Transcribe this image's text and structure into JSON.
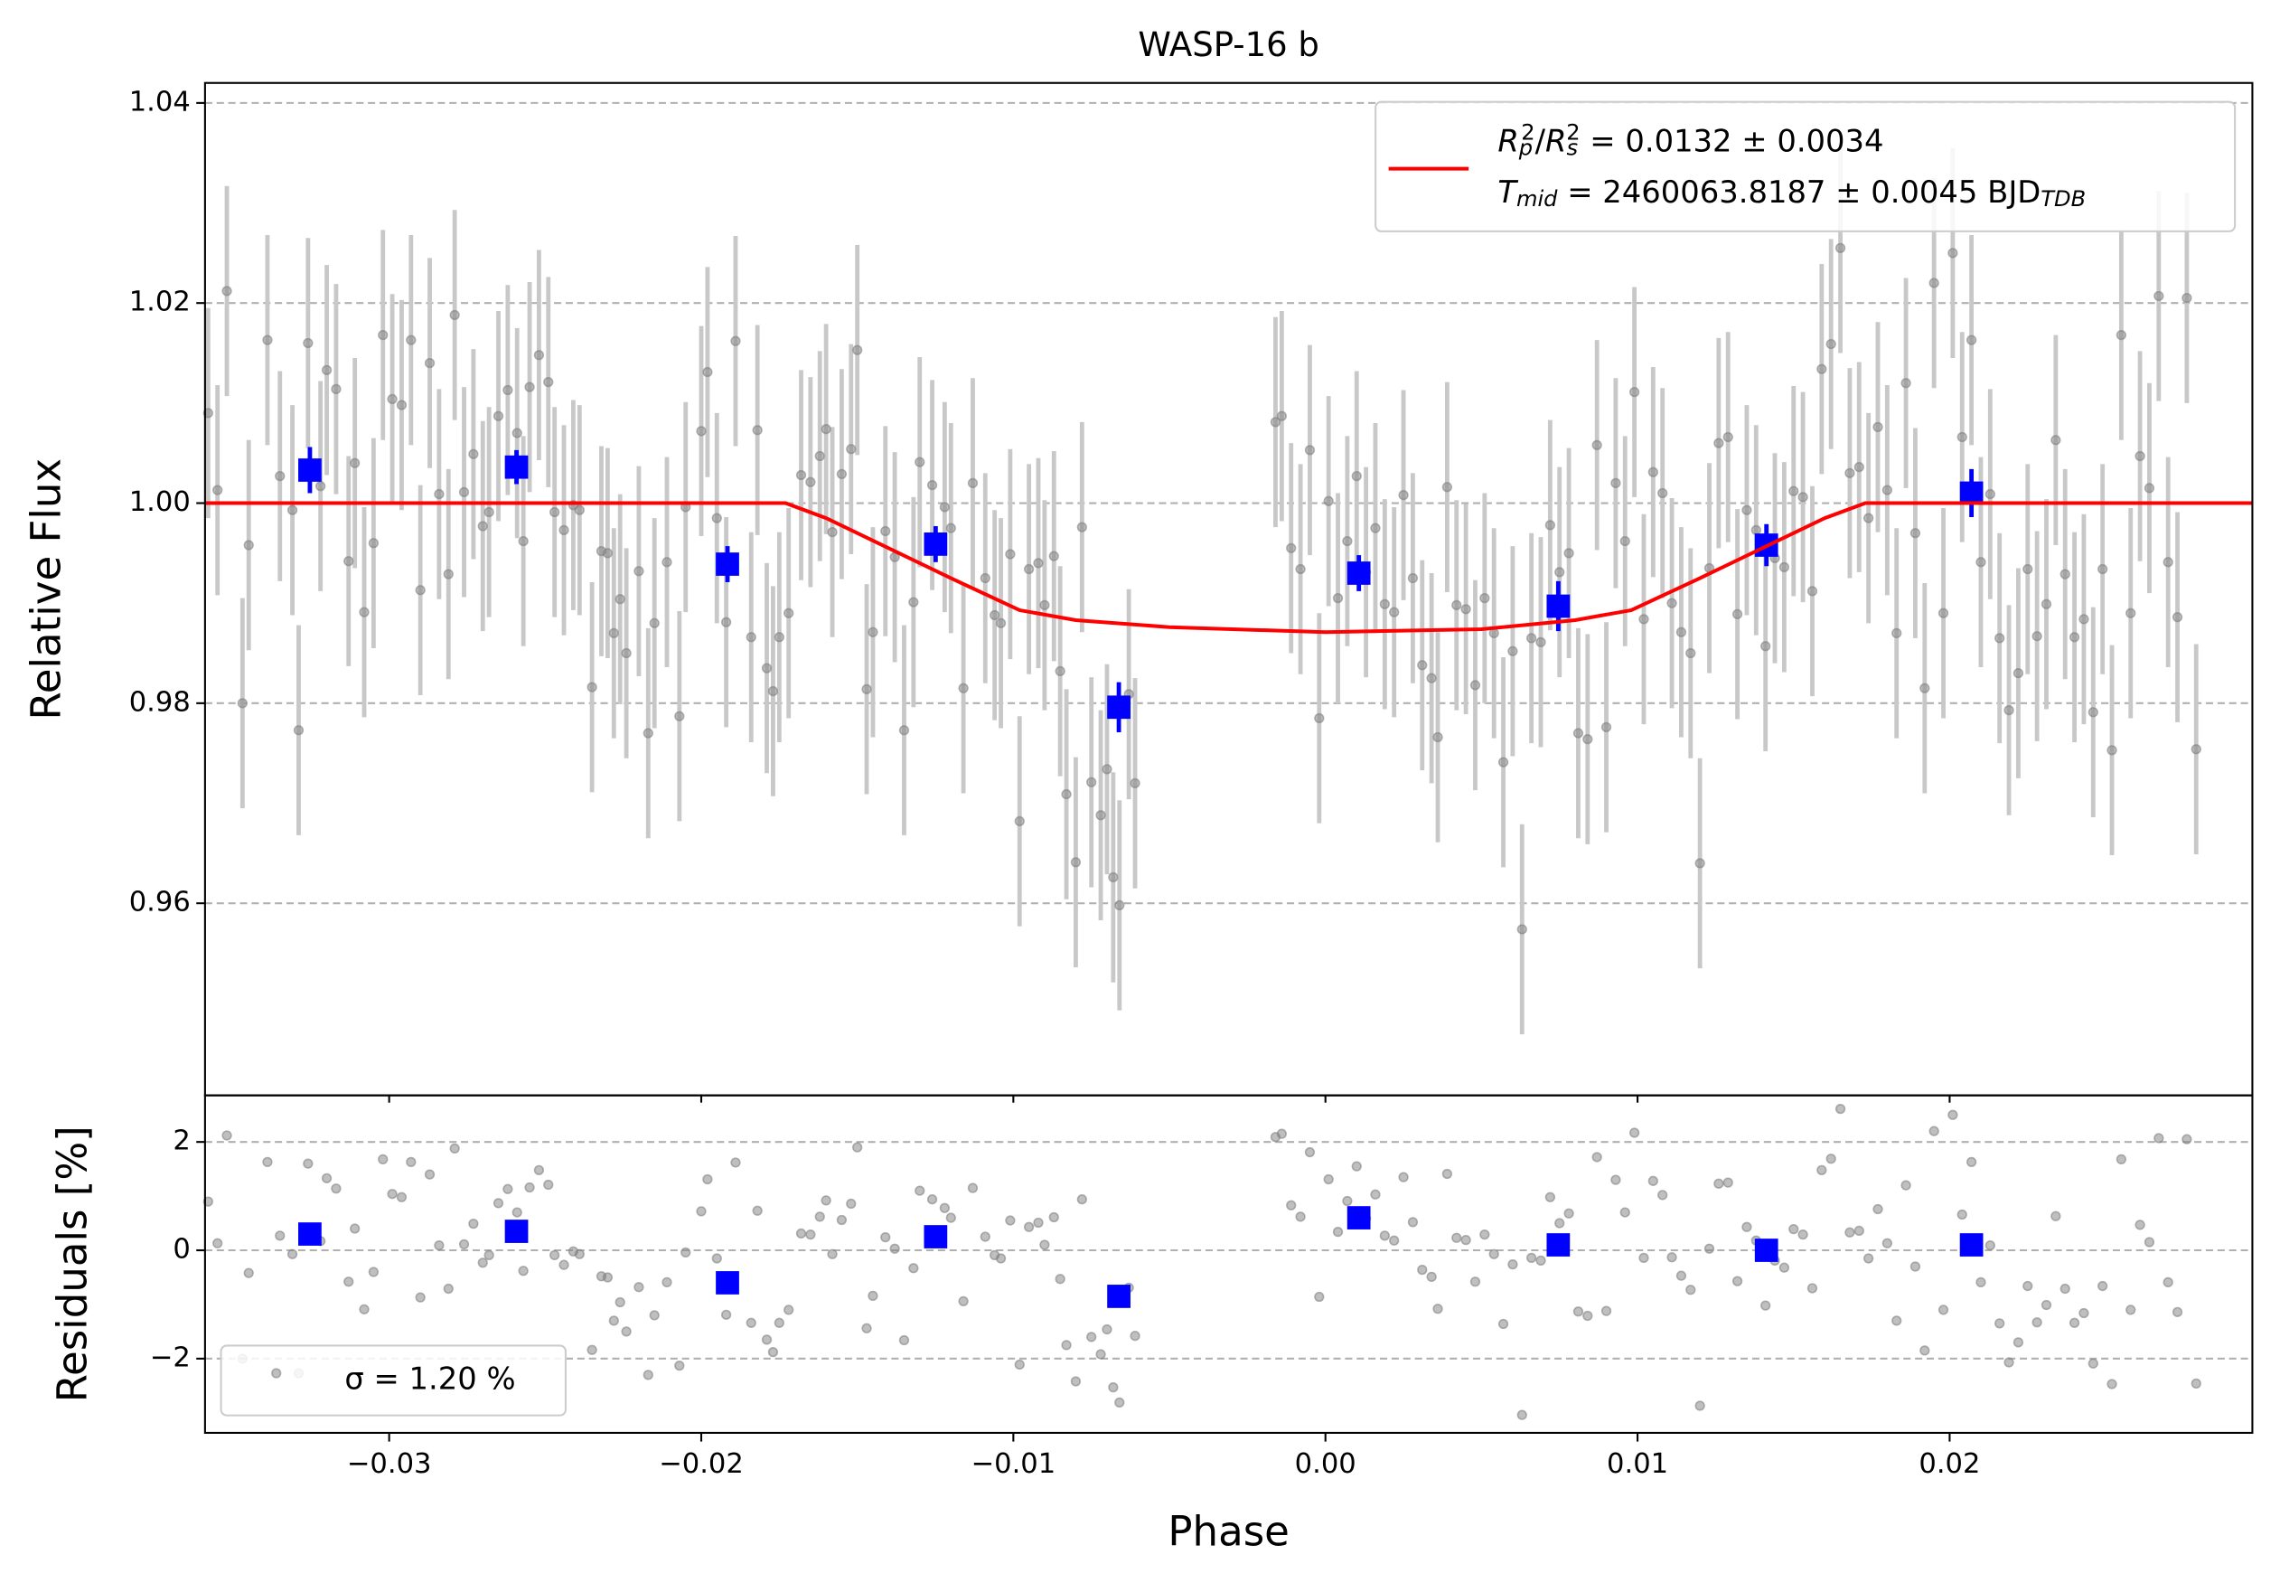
{
  "chart_data": {
    "type": "scatter",
    "title": "WASP-16 b",
    "xlabel": "Phase",
    "ylabel": "Relative Flux",
    "residual_ylabel": "Residuals [%]",
    "xlim": [
      -0.0359,
      0.0297
    ],
    "xticks": [
      {
        "value": -0.03,
        "label": "−0.03"
      },
      {
        "value": -0.02,
        "label": "−0.02"
      },
      {
        "value": -0.01,
        "label": "−0.01"
      },
      {
        "value": 0,
        "label": "0.00"
      },
      0.01,
      0.02
    ],
    "ylim": [
      0.9408,
      1.042
    ],
    "yticks": [
      0.96,
      0.98,
      {
        "value": 1,
        "label": "1.00"
      },
      1.02,
      1.04
    ],
    "residual_ylim": [
      -3.37,
      2.86
    ],
    "residual_yticks": [
      {
        "value": -2,
        "label": "−2"
      },
      0,
      2
    ],
    "grid": true,
    "residual_legend": "σ = 1.20 %",
    "series": [
      {
        "type": "scatter",
        "color": "#808080",
        "error_color": "#c8c8c8",
        "error": 0.0105,
        "x": [
          -0.0358,
          -0.0355,
          -0.0352,
          -0.0347,
          -0.0345,
          -0.0339,
          -0.0335,
          -0.0331,
          -0.0329,
          -0.0326,
          -0.0322,
          -0.032,
          -0.0317,
          -0.0313,
          -0.0311,
          -0.0308,
          -0.0305,
          -0.0302,
          -0.0299,
          -0.0296,
          -0.0293,
          -0.029,
          -0.0287,
          -0.0284,
          -0.0281,
          -0.0279,
          -0.0276,
          -0.0273,
          -0.027,
          -0.0268,
          -0.0265,
          -0.0262,
          -0.0259,
          -0.0257,
          -0.0255,
          -0.0252,
          -0.0249,
          -0.0247,
          -0.0244,
          -0.0241,
          -0.0239,
          -0.0235,
          -0.0232,
          -0.023,
          -0.0228,
          -0.0226,
          -0.0224,
          -0.022,
          -0.0217,
          -0.0215,
          -0.0211,
          -0.0207,
          -0.0205,
          -0.02,
          -0.0198,
          -0.0195,
          -0.0192,
          -0.0189,
          -0.0184,
          -0.0182,
          -0.0179,
          -0.0177,
          -0.0175,
          -0.0172,
          -0.0168,
          -0.0165,
          -0.0162,
          -0.016,
          -0.0158,
          -0.0155,
          -0.0152,
          -0.015,
          -0.0147,
          -0.0145,
          -0.0141,
          -0.0138,
          -0.0135,
          -0.0132,
          -0.013,
          -0.0126,
          -0.0122,
          -0.012,
          -0.0116,
          -0.0113,
          -0.0109,
          -0.0106,
          -0.0104,
          -0.0101,
          -0.0098,
          -0.0095,
          -0.0092,
          -0.009,
          -0.0087,
          -0.0085,
          -0.0083,
          -0.008,
          -0.0078,
          -0.0075,
          -0.0072,
          -0.007,
          -0.0068,
          -0.0066,
          -0.0063,
          -0.0061,
          -0.0016,
          -0.0014,
          -0.0011,
          -0.0008,
          -0.0005,
          -0.0002,
          0.0001,
          0.0004,
          0.0007,
          0.001,
          0.0013,
          0.0016,
          0.0019,
          0.0022,
          0.0025,
          0.0028,
          0.0031,
          0.0034,
          0.0036,
          0.0039,
          0.0042,
          0.0045,
          0.0048,
          0.0051,
          0.0054,
          0.0057,
          0.006,
          0.0063,
          0.0066,
          0.0069,
          0.0072,
          0.0075,
          0.0078,
          0.0081,
          0.0084,
          0.0087,
          0.009,
          0.0093,
          0.0096,
          0.0099,
          0.0102,
          0.0105,
          0.0108,
          0.0111,
          0.0114,
          0.0117,
          0.012,
          0.0123,
          0.0126,
          0.0129,
          0.0132,
          0.0135,
          0.0138,
          0.0141,
          0.0144,
          0.0147,
          0.015,
          0.0153,
          0.0156,
          0.0159,
          0.0162,
          0.0165,
          0.0168,
          0.0171,
          0.0174,
          0.0177,
          0.018,
          0.0183,
          0.0186,
          0.0189,
          0.0192,
          0.0195,
          0.0198,
          0.0201,
          0.0204,
          0.0207,
          0.021,
          0.0213,
          0.0216,
          0.0219,
          0.0222,
          0.0225,
          0.0228,
          0.0231,
          0.0234,
          0.0237,
          0.024,
          0.0243,
          0.0246,
          0.0249,
          0.0252,
          0.0255,
          0.0258,
          0.0261,
          0.0264,
          0.0267,
          0.027,
          0.0273,
          0.0276,
          0.0279
        ],
        "values": [
          1.009,
          1.0013,
          1.0212,
          0.98,
          0.9958,
          1.0163,
          1.0027,
          0.9993,
          0.9773,
          1.016,
          1.0017,
          1.0133,
          1.0114,
          0.9942,
          1.004,
          0.9891,
          0.996,
          1.0168,
          1.0104,
          1.0098,
          1.0163,
          0.9913,
          1.014,
          1.0009,
          0.9929,
          1.0188,
          1.0011,
          1.0049,
          0.9977,
          0.9991,
          1.0087,
          1.0113,
          1.007,
          0.9962,
          1.0116,
          1.0148,
          1.0121,
          0.9991,
          0.9973,
          0.9998,
          0.9993,
          0.9816,
          0.9952,
          0.995,
          0.987,
          0.9904,
          0.985,
          0.9932,
          0.977,
          0.988,
          0.9941,
          0.9787,
          0.9996,
          1.0072,
          1.0131,
          0.9985,
          0.9881,
          1.0162,
          0.9866,
          1.0073,
          0.9835,
          0.9812,
          0.9866,
          0.989,
          1.0028,
          1.0021,
          1.0047,
          1.0074,
          0.9971,
          1.0029,
          1.0054,
          1.0153,
          0.9814,
          0.9871,
          0.9972,
          0.9946,
          0.9773,
          0.9901,
          1.0041,
          1.0018,
          0.9996,
          0.9975,
          0.9815,
          1.002,
          0.9925,
          0.9888,
          0.988,
          0.9949,
          0.9682,
          0.9934,
          0.994,
          0.9898,
          0.9947,
          0.9832,
          0.9709,
          0.9641,
          0.9976,
          0.9721,
          0.9688,
          0.9734,
          0.9626,
          0.9598,
          0.9809,
          0.972,
          1.0081,
          1.0087,
          0.9955,
          0.9934,
          1.0053,
          0.9785,
          1.0002,
          0.9905,
          0.9962,
          1.0027,
          0.9931,
          0.9975,
          0.9899,
          0.9891,
          1.0008,
          0.9925,
          0.9838,
          0.9825,
          0.9766,
          1.0016,
          0.9898,
          0.9894,
          0.9818,
          0.9905,
          0.987,
          0.9741,
          0.9852,
          0.9574,
          0.9865,
          0.9861,
          0.9978,
          0.9931,
          0.995,
          0.977,
          0.9764,
          1.0058,
          0.9776,
          1.002,
          0.9962,
          1.0111,
          0.9884,
          1.0031,
          1.001,
          0.99,
          0.9871,
          0.985,
          0.964,
          0.9935,
          1.006,
          1.0066,
          0.9889,
          0.9993,
          0.9973,
          0.9857,
          0.9945,
          0.9936,
          1.0012,
          1.0006,
          0.9912,
          1.0134,
          1.0159,
          1.0255,
          1.003,
          1.0036,
          0.9985,
          1.0076,
          1.0013,
          0.987,
          1.012,
          0.997,
          0.9815,
          1.022,
          0.989,
          1.025,
          1.0066,
          1.0163,
          0.9941,
          1.0009,
          0.9865,
          0.9793,
          0.983,
          0.9934,
          0.9867,
          0.9899,
          1.0063,
          0.9929,
          0.9866,
          0.9884,
          0.9791,
          0.9934,
          0.9753,
          1.0168,
          0.989,
          1.0047,
          1.0015,
          1.0207,
          0.9941,
          0.9886,
          1.0205,
          0.9754
        ],
        "residuals": [
          0.9,
          0.13,
          2.12,
          -2,
          -0.42,
          1.63,
          0.27,
          -0.07,
          -2.27,
          1.6,
          0.17,
          1.33,
          1.14,
          -0.58,
          0.4,
          -1.09,
          -0.4,
          1.68,
          1.04,
          0.98,
          1.63,
          -0.87,
          1.4,
          0.09,
          -0.71,
          1.88,
          0.11,
          0.49,
          -0.23,
          -0.09,
          0.87,
          1.13,
          0.7,
          -0.38,
          1.16,
          1.48,
          1.21,
          -0.09,
          -0.27,
          -0.02,
          -0.07,
          -1.84,
          -0.48,
          -0.5,
          -1.3,
          -0.96,
          -1.5,
          -0.68,
          -2.3,
          -1.2,
          -0.59,
          -2.13,
          -0.04,
          0.72,
          1.31,
          -0.15,
          -1.19,
          1.62,
          -1.34,
          0.73,
          -1.65,
          -1.88,
          -1.34,
          -1.1,
          0.31,
          0.29,
          0.62,
          0.92,
          -0.07,
          0.56,
          0.86,
          1.9,
          -1.44,
          -0.84,
          0.24,
          0.03,
          -1.66,
          -0.33,
          1.1,
          0.94,
          0.78,
          0.6,
          -0.94,
          1.15,
          0.25,
          -0.09,
          -0.15,
          0.55,
          -2.11,
          0.43,
          0.51,
          0.1,
          0.61,
          -0.53,
          -1.75,
          -2.42,
          0.94,
          -1.6,
          -1.92,
          -1.46,
          -2.53,
          -2.81,
          -0.69,
          -1.58,
          2.09,
          2.15,
          0.83,
          0.62,
          1.81,
          -0.86,
          1.31,
          0.34,
          0.91,
          1.55,
          0.59,
          1.03,
          0.27,
          0.18,
          1.35,
          0.52,
          -0.36,
          -0.49,
          -1.08,
          1.41,
          0.23,
          0.19,
          -0.58,
          0.29,
          -0.07,
          -1.36,
          -0.26,
          -3.04,
          -0.14,
          -0.19,
          0.98,
          0.5,
          0.68,
          -1.13,
          -1.21,
          1.72,
          -1.12,
          1.3,
          0.7,
          2.17,
          -0.14,
          1.28,
          1.02,
          -0.13,
          -0.47,
          -0.73,
          -2.87,
          0.03,
          1.23,
          1.25,
          -0.57,
          0.43,
          0.18,
          -1.02,
          -0.19,
          -0.32,
          0.39,
          0.29,
          -0.7,
          1.48,
          1.69,
          2.61,
          0.33,
          0.36,
          -0.15,
          0.76,
          0.13,
          -1.3,
          1.2,
          -0.3,
          -1.85,
          2.2,
          -1.1,
          2.5,
          0.66,
          1.63,
          -0.59,
          0.09,
          -1.35,
          -2.07,
          -1.7,
          -0.66,
          -1.33,
          -1.01,
          0.63,
          -0.71,
          -1.34,
          -1.16,
          -2.09,
          -0.66,
          -2.47,
          1.68,
          -1.1,
          0.47,
          0.15,
          2.07,
          -0.59,
          -1.14,
          2.05,
          -2.46
        ]
      },
      {
        "type": "binned",
        "color": "#0000ff",
        "x": [
          -0.03254,
          -0.02592,
          -0.01916,
          -0.01249,
          -0.00662,
          0.00107,
          0.00746,
          0.01413,
          0.0207
        ],
        "values": [
          1.0033,
          1.0036,
          0.9939,
          0.9959,
          0.9796,
          0.993,
          0.9897,
          0.9958,
          1.001
        ],
        "errors": [
          0.0023,
          0.0017,
          0.0018,
          0.0018,
          0.0025,
          0.0018,
          0.0025,
          0.0021,
          0.0024
        ],
        "residuals": [
          0.3,
          0.35,
          -0.6,
          0.25,
          -0.85,
          0.6,
          0.1,
          0,
          0.1
        ]
      },
      {
        "type": "line",
        "color": "#ff0000",
        "name": [
          [
            {
              "text": "R",
              "italic": true
            },
            {
              "text": "p",
              "pos": "sub",
              "italic": true
            },
            {
              "text": "2",
              "pos": "sup"
            },
            {
              "text": "/"
            },
            {
              "text": "R",
              "italic": true
            },
            {
              "text": "s",
              "pos": "sub",
              "italic": true
            },
            {
              "text": "2",
              "pos": "sup"
            },
            {
              "text": " = 0.0132 ± 0.0034"
            }
          ],
          [
            {
              "text": "T",
              "italic": true
            },
            {
              "text": "mid",
              "pos": "sub",
              "italic": true
            },
            {
              "text": " = 2460063.8187 ± 0.0045 BJD"
            },
            {
              "text": "TDB",
              "pos": "sub",
              "italic": true
            }
          ]
        ],
        "x": [
          -0.0359,
          -0.0173,
          -0.016,
          -0.014,
          -0.012,
          -0.0098,
          -0.008,
          -0.005,
          0,
          0.005,
          0.008,
          0.0098,
          0.012,
          0.014,
          0.016,
          0.0173,
          0.0297
        ],
        "values": [
          1,
          1,
          0.9985,
          0.9955,
          0.9925,
          0.9893,
          0.9883,
          0.9876,
          0.9871,
          0.9874,
          0.9883,
          0.9893,
          0.9925,
          0.9955,
          0.9985,
          1,
          1
        ]
      }
    ]
  }
}
